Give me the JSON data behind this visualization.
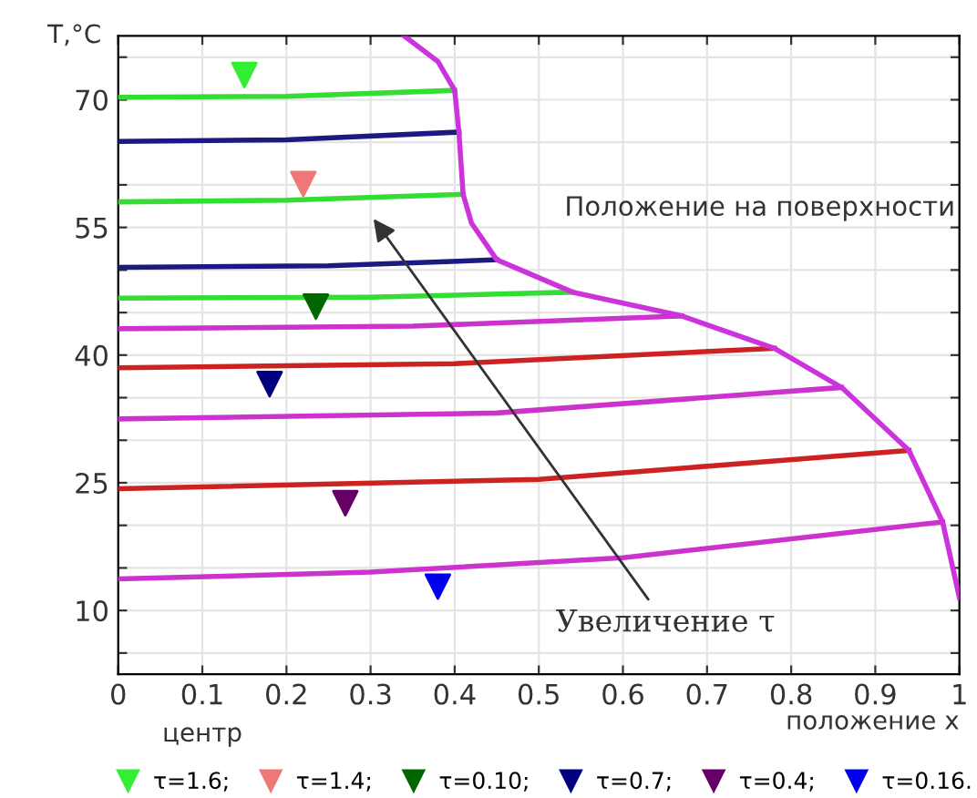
{
  "chart_data": {
    "type": "line",
    "ylabel": "T,°C",
    "xlabel": "положение x",
    "annotations": [
      "Увеличение τ",
      "Положение на поверхности",
      "центр"
    ],
    "xlim": [
      0,
      1
    ],
    "ylim": [
      2.5,
      77.5
    ],
    "xticks": [
      0,
      0.1,
      0.2,
      0.3,
      0.4,
      0.5,
      0.6,
      0.7,
      0.8,
      0.9,
      1
    ],
    "yticks": [
      {
        "value": 5,
        "label": null
      },
      10,
      {
        "value": 15,
        "label": null
      },
      {
        "value": 20,
        "label": null
      },
      25,
      {
        "value": 30,
        "label": null
      },
      {
        "value": 35,
        "label": null
      },
      40,
      {
        "value": 45,
        "label": null
      },
      {
        "value": 50,
        "label": null
      },
      55,
      {
        "value": 60,
        "label": null
      },
      {
        "value": 65,
        "label": null
      },
      70,
      {
        "value": 75,
        "label": null
      }
    ],
    "grid": true,
    "legend": "bottom",
    "marker": "none",
    "line_style": "solid",
    "series": [
      {
        "color": "#33dd33",
        "x": [
          0,
          0.2,
          0.4
        ],
        "values": [
          70.3,
          70.4,
          71.1
        ]
      },
      {
        "color": "#1a1a80",
        "x": [
          0,
          0.2,
          0.405
        ],
        "values": [
          65.1,
          65.3,
          66.2
        ]
      },
      {
        "color": "#33dd33",
        "x": [
          0,
          0.2,
          0.41
        ],
        "values": [
          58.0,
          58.2,
          58.9
        ]
      },
      {
        "color": "#1a1a80",
        "x": [
          0,
          0.25,
          0.45
        ],
        "values": [
          50.3,
          50.5,
          51.2
        ]
      },
      {
        "color": "#33dd33",
        "x": [
          0,
          0.3,
          0.54
        ],
        "values": [
          46.7,
          46.8,
          47.4
        ]
      },
      {
        "color": "#cc33cc",
        "x": [
          0,
          0.35,
          0.67
        ],
        "values": [
          43.1,
          43.4,
          44.6
        ]
      },
      {
        "color": "#cc2222",
        "x": [
          0,
          0.4,
          0.78
        ],
        "values": [
          38.5,
          39.0,
          40.8
        ]
      },
      {
        "color": "#cc33cc",
        "x": [
          0,
          0.45,
          0.86
        ],
        "values": [
          32.5,
          33.2,
          36.2
        ]
      },
      {
        "color": "#cc2222",
        "x": [
          0,
          0.5,
          0.94
        ],
        "values": [
          24.3,
          25.4,
          28.8
        ]
      },
      {
        "color": "#cc33cc",
        "x": [
          0,
          0.3,
          0.6,
          0.98
        ],
        "values": [
          13.7,
          14.5,
          16.2,
          20.4
        ]
      },
      {
        "color": "#cc33dd",
        "x": [
          0.34,
          0.38,
          0.4,
          0.405,
          0.41,
          0.42,
          0.45,
          0.54,
          0.67,
          0.78,
          0.86,
          0.94,
          0.98,
          1.0
        ],
        "values": [
          77.5,
          74.5,
          71.1,
          66.2,
          58.9,
          55.5,
          51.2,
          47.4,
          44.6,
          40.8,
          36.2,
          28.8,
          20.4,
          11.5
        ]
      },
      {
        "type": "scatter",
        "marker": "triangle",
        "name": "τ=1.6;",
        "color": "#33ee33",
        "x": [
          0.15
        ],
        "values": [
          72.9
        ]
      },
      {
        "type": "scatter",
        "marker": "triangle",
        "name": "τ=1.4;",
        "color": "#ee7777",
        "x": [
          0.22
        ],
        "values": [
          60.1
        ]
      },
      {
        "type": "scatter",
        "marker": "triangle",
        "name": "τ=0.10;",
        "color": "#006600",
        "x": [
          0.235
        ],
        "values": [
          45.7
        ]
      },
      {
        "type": "scatter",
        "marker": "triangle",
        "name": "τ=0.7;",
        "color": "#000080",
        "x": [
          0.18
        ],
        "values": [
          36.6
        ]
      },
      {
        "type": "scatter",
        "marker": "triangle",
        "name": "τ=0.4;",
        "color": "#660066",
        "x": [
          0.27
        ],
        "values": [
          22.6
        ]
      },
      {
        "type": "scatter",
        "marker": "triangle",
        "name": "τ=0.16.",
        "color": "#0000ee",
        "x": [
          0.38
        ],
        "values": [
          12.8
        ]
      }
    ]
  }
}
